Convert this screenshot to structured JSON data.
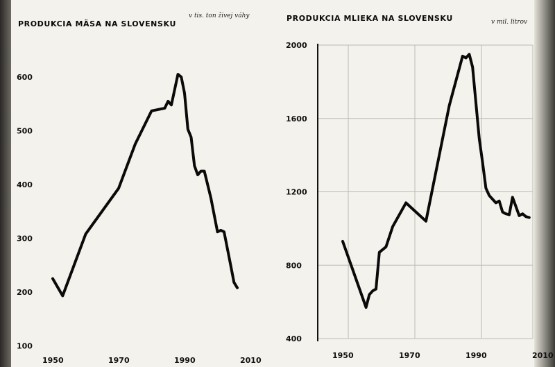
{
  "chart_data": [
    {
      "type": "line",
      "title": "PRODUKCIA MÄSA NA SLOVENSKU",
      "subtitle": "v tis. ton živej váhy",
      "xlabel": "",
      "ylabel": "",
      "xlim": [
        1945,
        2010
      ],
      "ylim": [
        100,
        650
      ],
      "xticks": [
        1950,
        1970,
        1990,
        2010
      ],
      "yticks": [
        200,
        300,
        400,
        500,
        600
      ],
      "yticks_extra": [
        100
      ],
      "grid": false,
      "series": [
        {
          "x": [
            1950,
            1953,
            1960,
            1970,
            1975,
            1980,
            1984,
            1985,
            1986,
            1988,
            1989,
            1990,
            1991,
            1992,
            1993,
            1994,
            1995,
            1996,
            1998,
            2000,
            2001,
            2002,
            2004,
            2005,
            2006
          ],
          "y": [
            225,
            193,
            308,
            393,
            475,
            537,
            542,
            555,
            548,
            605,
            600,
            570,
            503,
            488,
            435,
            418,
            425,
            425,
            375,
            312,
            315,
            312,
            250,
            218,
            208
          ]
        }
      ]
    },
    {
      "type": "line",
      "title": "PRODUKCIA MLIEKA NA SLOVENSKU",
      "subtitle": "v mil. litrov",
      "xlabel": "",
      "ylabel": "",
      "xlim": [
        1945,
        2010
      ],
      "ylim": [
        400,
        2000
      ],
      "xticks": [
        1950,
        1970,
        1990,
        2010
      ],
      "yticks": [
        400,
        800,
        1200,
        1600,
        2000
      ],
      "grid": true,
      "series": [
        {
          "x": [
            1950,
            1957,
            1958,
            1959,
            1960,
            1961,
            1963,
            1965,
            1969,
            1972,
            1975,
            1982,
            1986,
            1987,
            1988,
            1989,
            1991,
            1992,
            1993,
            1994,
            1995,
            1996,
            1997,
            1998,
            1999,
            2000,
            2001,
            2002,
            2003,
            2004,
            2005,
            2006
          ],
          "y": [
            930,
            570,
            640,
            660,
            670,
            870,
            900,
            1010,
            1140,
            1090,
            1040,
            1670,
            1940,
            1930,
            1950,
            1880,
            1490,
            1360,
            1220,
            1180,
            1160,
            1140,
            1150,
            1090,
            1080,
            1075,
            1170,
            1120,
            1070,
            1080,
            1065,
            1060
          ]
        }
      ]
    }
  ]
}
